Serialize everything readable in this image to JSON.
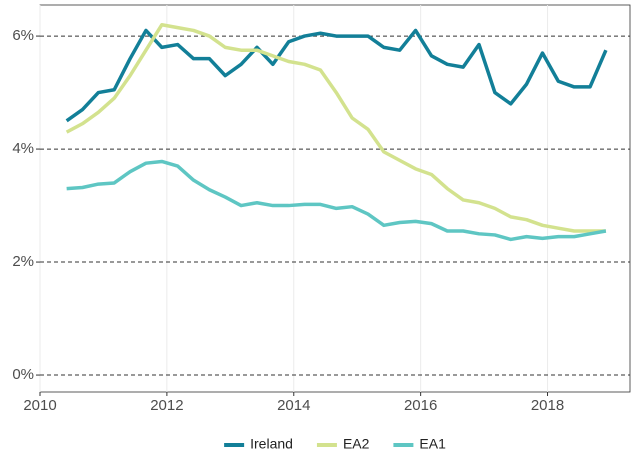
{
  "chart_data": {
    "type": "line",
    "x": [
      2010.42,
      2010.67,
      2010.92,
      2011.17,
      2011.42,
      2011.67,
      2011.92,
      2012.17,
      2012.42,
      2012.67,
      2012.92,
      2013.17,
      2013.42,
      2013.67,
      2013.92,
      2014.17,
      2014.42,
      2014.67,
      2014.92,
      2015.17,
      2015.42,
      2015.67,
      2015.92,
      2016.17,
      2016.42,
      2016.67,
      2016.92,
      2017.17,
      2017.42,
      2017.67,
      2017.92,
      2018.17,
      2018.42,
      2018.67,
      2018.92
    ],
    "series": [
      {
        "name": "Ireland",
        "color": "#127f98",
        "values": [
          4.5,
          4.7,
          5.0,
          5.05,
          5.6,
          6.1,
          5.8,
          5.85,
          5.6,
          5.6,
          5.3,
          5.5,
          5.8,
          5.5,
          5.9,
          6.0,
          6.05,
          6.0,
          6.0,
          6.0,
          5.8,
          5.75,
          6.1,
          5.65,
          5.5,
          5.45,
          5.85,
          5.0,
          4.8,
          5.15,
          5.7,
          5.2,
          5.1,
          5.1,
          5.75
        ]
      },
      {
        "name": "EA2",
        "color": "#d3e28e",
        "values": [
          4.3,
          4.45,
          4.65,
          4.9,
          5.3,
          5.75,
          6.2,
          6.15,
          6.1,
          6.0,
          5.8,
          5.75,
          5.75,
          5.65,
          5.55,
          5.5,
          5.4,
          5.0,
          4.55,
          4.35,
          3.95,
          3.8,
          3.65,
          3.55,
          3.3,
          3.1,
          3.05,
          2.95,
          2.8,
          2.75,
          2.65,
          2.6,
          2.55,
          2.55,
          2.55
        ]
      },
      {
        "name": "EA1",
        "color": "#5ec6c3",
        "values": [
          3.3,
          3.32,
          3.38,
          3.4,
          3.6,
          3.75,
          3.78,
          3.7,
          3.45,
          3.28,
          3.15,
          3.0,
          3.05,
          3.0,
          3.0,
          3.02,
          3.02,
          2.95,
          2.98,
          2.85,
          2.65,
          2.7,
          2.72,
          2.68,
          2.55,
          2.55,
          2.5,
          2.48,
          2.4,
          2.45,
          2.42,
          2.45,
          2.45,
          2.5,
          2.55
        ]
      }
    ],
    "xlim": [
      2010,
      2019.3
    ],
    "xticks": [
      2010,
      2012,
      2014,
      2016,
      2018
    ],
    "ylim": [
      -0.3,
      6.55
    ],
    "yticks": [
      {
        "value": 0,
        "label": "0%"
      },
      {
        "value": 2,
        "label": "2%"
      },
      {
        "value": 4,
        "label": "4%"
      },
      {
        "value": 6,
        "label": "6%"
      }
    ],
    "grid": true,
    "legend": "bottom"
  }
}
